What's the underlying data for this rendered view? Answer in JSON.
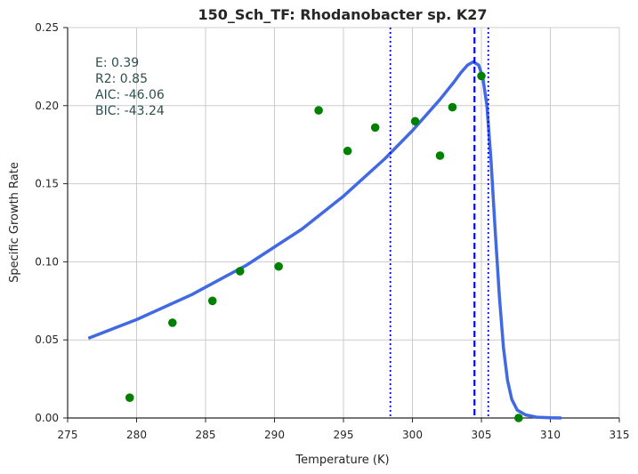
{
  "chart_data": {
    "type": "scatter",
    "title": "150_Sch_TF: Rhodanobacter sp. K27",
    "xlabel": "Temperature (K)",
    "ylabel": "Specific Growth Rate",
    "xlim": [
      275,
      315
    ],
    "ylim": [
      0,
      0.25
    ],
    "x_ticks": [
      "275",
      "280",
      "285",
      "290",
      "295",
      "300",
      "305",
      "310",
      "315"
    ],
    "y_ticks": [
      "0.00",
      "0.05",
      "0.10",
      "0.15",
      "0.20",
      "0.25"
    ],
    "grid": true,
    "stats": [
      {
        "key": "E:",
        "value": "0.39"
      },
      {
        "key": "R2:",
        "value": "0.85"
      },
      {
        "key": "AIC:",
        "value": "-46.06"
      },
      {
        "key": "BIC:",
        "value": "-43.24"
      }
    ],
    "points": {
      "color": "#008000",
      "x": [
        279.5,
        282.6,
        285.5,
        287.5,
        290.3,
        293.2,
        295.3,
        297.3,
        300.2,
        302.0,
        302.9,
        305.0,
        307.7
      ],
      "y": [
        0.013,
        0.061,
        0.075,
        0.094,
        0.097,
        0.197,
        0.171,
        0.186,
        0.19,
        0.168,
        0.199,
        0.219,
        0.0
      ]
    },
    "fit_curve": {
      "color": "#4169e1",
      "x": [
        276.5,
        280,
        284,
        288,
        292,
        295,
        298,
        300,
        302,
        303,
        303.5,
        304,
        304.4,
        304.8,
        305.1,
        305.4,
        305.7,
        306.0,
        306.3,
        306.6,
        306.9,
        307.2,
        307.6,
        308.2,
        309,
        310,
        310.8
      ],
      "y": [
        0.051,
        0.063,
        0.079,
        0.098,
        0.121,
        0.142,
        0.166,
        0.184,
        0.204,
        0.215,
        0.221,
        0.226,
        0.228,
        0.226,
        0.218,
        0.2,
        0.165,
        0.12,
        0.078,
        0.045,
        0.024,
        0.012,
        0.005,
        0.002,
        0.0005,
        0.0001,
        0.0
      ]
    },
    "vlines": [
      {
        "x": 298.4,
        "style": "dotted",
        "color": "#0000ff"
      },
      {
        "x": 304.5,
        "style": "dashed",
        "color": "#0000ff"
      },
      {
        "x": 305.5,
        "style": "dotted",
        "color": "#0000ff"
      }
    ]
  }
}
